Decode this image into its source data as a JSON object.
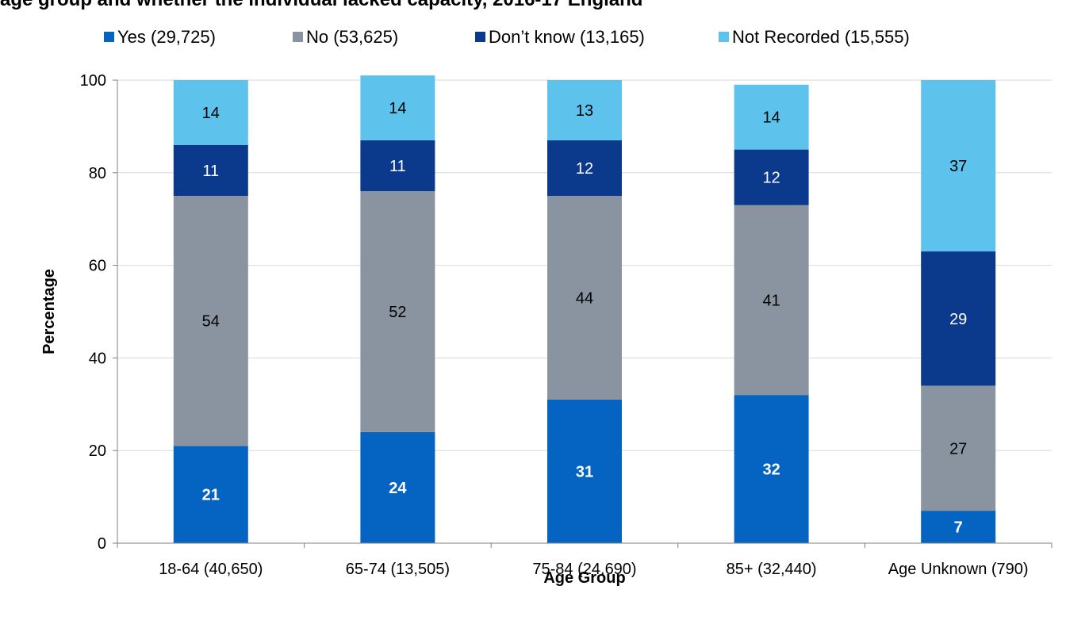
{
  "title_fragment": "age group and whether the individual lacked capacity, 2016-17 England",
  "chart_data": {
    "type": "bar",
    "stacked": true,
    "categories": [
      "18-64  (40,650)",
      "65-74 (13,505)",
      "75-84 (24,690)",
      "85+ (32,440)",
      "Age Unknown (790)"
    ],
    "series": [
      {
        "name": "Yes (29,725)",
        "color": "#0563C1",
        "label_color": "#ffffff",
        "label_bold": true,
        "values": [
          21,
          24,
          31,
          32,
          7
        ]
      },
      {
        "name": "No (53,625)",
        "color": "#8994A0",
        "label_color": "#000000",
        "label_bold": false,
        "values": [
          54,
          52,
          44,
          41,
          27
        ]
      },
      {
        "name": "Don’t know (13,165)",
        "color": "#0B3A8C",
        "label_color": "#ffffff",
        "label_bold": false,
        "values": [
          11,
          11,
          12,
          12,
          29
        ]
      },
      {
        "name": "Not Recorded (15,555)",
        "color": "#5DC2EC",
        "label_color": "#000000",
        "label_bold": false,
        "values": [
          14,
          14,
          13,
          14,
          37
        ]
      }
    ],
    "xlabel": "Age Group",
    "ylabel": "Percentage",
    "ylim": [
      0,
      100
    ],
    "yticks": [
      0,
      20,
      40,
      60,
      80,
      100
    ],
    "grid": true,
    "legend": "top"
  }
}
